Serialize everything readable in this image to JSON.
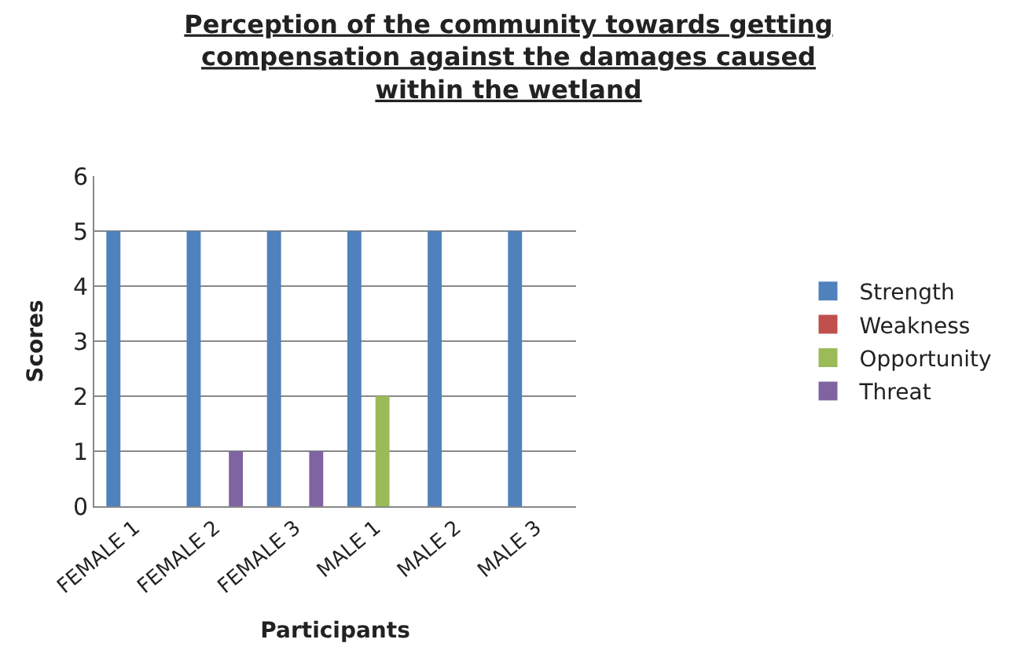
{
  "chart_data": {
    "type": "bar",
    "title": "Perception of the community towards getting compensation against the damages caused within the wetland",
    "xlabel": "Participants",
    "ylabel": "Scores",
    "categories": [
      "FEMALE 1",
      "FEMALE 2",
      "FEMALE 3",
      "MALE 1",
      "MALE 2",
      "MALE 3"
    ],
    "series": [
      {
        "name": "Strength",
        "color": "#4f81bd",
        "values": [
          5,
          5,
          5,
          5,
          5,
          5
        ]
      },
      {
        "name": "Weakness",
        "color": "#c0504d",
        "values": [
          0,
          0,
          0,
          0,
          0,
          0
        ]
      },
      {
        "name": "Opportunity",
        "color": "#9bbb59",
        "values": [
          0,
          0,
          0,
          2,
          0,
          0
        ]
      },
      {
        "name": "Threat",
        "color": "#8064a2",
        "values": [
          0,
          1,
          1,
          0,
          0,
          0
        ]
      }
    ],
    "ylim": [
      0,
      6
    ],
    "yticks": [
      0,
      1,
      2,
      3,
      4,
      5,
      6
    ],
    "grid": "y",
    "legend": "right"
  }
}
